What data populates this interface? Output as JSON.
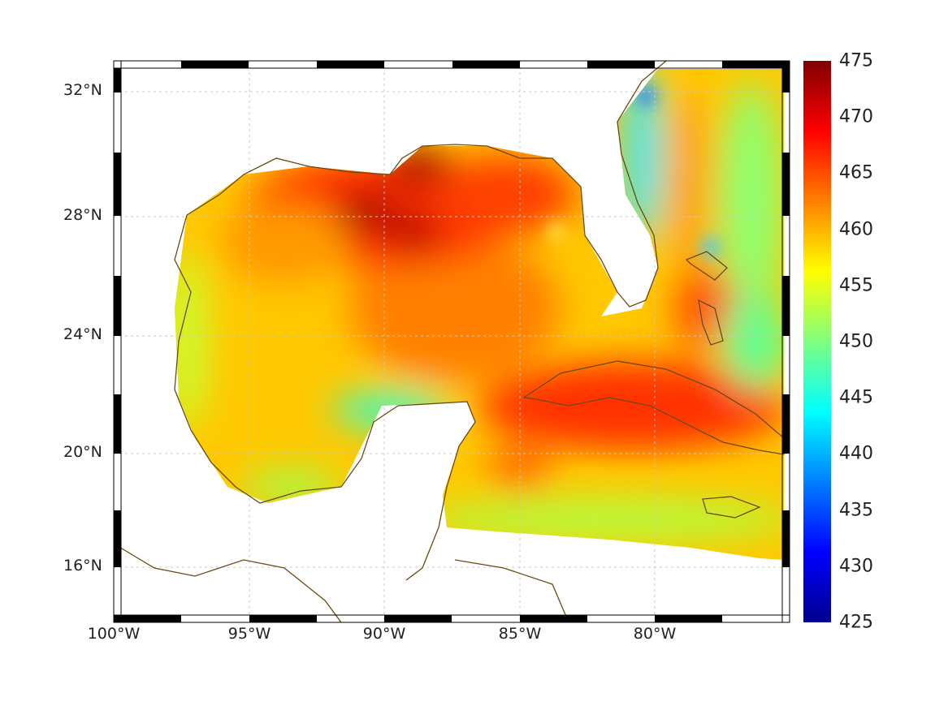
{
  "map": {
    "lat_labels": [
      "32°N",
      "28°N",
      "24°N",
      "20°N",
      "16°N"
    ],
    "lon_labels": [
      "100°W",
      "95°W",
      "90°W",
      "85°W",
      "80°W"
    ],
    "colormap": "jet",
    "colors": {
      "coast": "#6b4a12",
      "grid": "#c8c8c8",
      "frame": "#000000"
    }
  },
  "colorbar": {
    "ticks": [
      "475",
      "470",
      "465",
      "460",
      "455",
      "450",
      "445",
      "440",
      "435",
      "430",
      "425"
    ],
    "range": [
      425,
      475
    ]
  }
}
